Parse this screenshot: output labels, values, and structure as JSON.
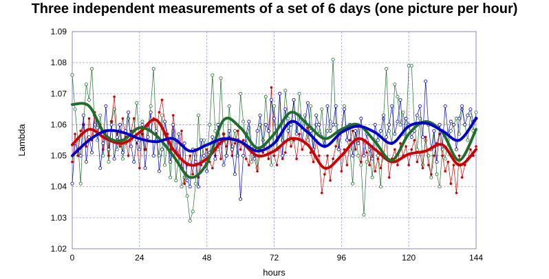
{
  "chart_data": {
    "type": "line",
    "title": "Three independent measurements of a set of 6 days (one picture per hour)",
    "xlabel": "hours",
    "ylabel": "Lambda",
    "xlim": [
      0,
      144
    ],
    "ylim": [
      1.02,
      1.09
    ],
    "x_ticks": [
      0,
      24,
      48,
      72,
      96,
      120,
      144
    ],
    "y_ticks": [
      "1.02",
      "1.03",
      "1.04",
      "1.05",
      "1.06",
      "1.07",
      "1.08",
      "1.09"
    ],
    "grid": true,
    "colors": {
      "red": "#cc0000",
      "green": "#1e6e2a",
      "blue": "#0000cc",
      "grid": "#9999dd"
    },
    "series": [
      {
        "id": "red",
        "raw": [
          1.048,
          1.057,
          1.05,
          1.058,
          1.06,
          1.053,
          1.062,
          1.055,
          1.064,
          1.057,
          1.06,
          1.052,
          1.058,
          1.05,
          1.061,
          1.069,
          1.057,
          1.053,
          1.062,
          1.056,
          1.05,
          1.058,
          1.062,
          1.054,
          1.046,
          1.057,
          1.052,
          1.06,
          1.058,
          1.062,
          1.057,
          1.064,
          1.068,
          1.061,
          1.057,
          1.052,
          1.063,
          1.055,
          1.05,
          1.058,
          1.041,
          1.047,
          1.05,
          1.044,
          1.052,
          1.043,
          1.047,
          1.05,
          1.052,
          1.048,
          1.046,
          1.05,
          1.055,
          1.049,
          1.057,
          1.053,
          1.056,
          1.05,
          1.054,
          1.058,
          1.052,
          1.055,
          1.049,
          1.047,
          1.054,
          1.049,
          1.045,
          1.052,
          1.051,
          1.054,
          1.049,
          1.072,
          1.05,
          1.047,
          1.053,
          1.049,
          1.051,
          1.058,
          1.053,
          1.055,
          1.049,
          1.057,
          1.052,
          1.054,
          1.059,
          1.051,
          1.048,
          1.055,
          1.05,
          1.038,
          1.044,
          1.05,
          1.042,
          1.049,
          1.053,
          1.058,
          1.045,
          1.052,
          1.047,
          1.055,
          1.058,
          1.052,
          1.06,
          1.048,
          1.055,
          1.051,
          1.047,
          1.053,
          1.045,
          1.049,
          1.046,
          1.05,
          1.056,
          1.043,
          1.049,
          1.052,
          1.047,
          1.054,
          1.05,
          1.053,
          1.047,
          1.052,
          1.055,
          1.048,
          1.051,
          1.046,
          1.056,
          1.047,
          1.044,
          1.05,
          1.054,
          1.057,
          1.05,
          1.045,
          1.048,
          1.041,
          1.047,
          1.038,
          1.05,
          1.043,
          1.047,
          1.049,
          1.052,
          1.05,
          1.053
        ],
        "smooth": [
          [
            0,
            1.0535
          ],
          [
            6,
            1.0585
          ],
          [
            12,
            1.0555
          ],
          [
            18,
            1.054
          ],
          [
            24,
            1.0575
          ],
          [
            30,
            1.0615
          ],
          [
            36,
            1.052
          ],
          [
            42,
            1.047
          ],
          [
            48,
            1.049
          ],
          [
            54,
            1.055
          ],
          [
            60,
            1.0545
          ],
          [
            66,
            1.05
          ],
          [
            72,
            1.0515
          ],
          [
            78,
            1.0555
          ],
          [
            84,
            1.0535
          ],
          [
            90,
            1.046
          ],
          [
            96,
            1.05
          ],
          [
            102,
            1.0555
          ],
          [
            108,
            1.052
          ],
          [
            114,
            1.048
          ],
          [
            120,
            1.0505
          ],
          [
            126,
            1.0515
          ],
          [
            132,
            1.0535
          ],
          [
            138,
            1.047
          ],
          [
            144,
            1.052
          ]
        ]
      },
      {
        "id": "green",
        "raw": [
          1.076,
          1.065,
          1.055,
          1.041,
          1.06,
          1.073,
          1.068,
          1.078,
          1.06,
          1.055,
          1.063,
          1.05,
          1.058,
          1.048,
          1.061,
          1.065,
          1.052,
          1.058,
          1.049,
          1.054,
          1.062,
          1.055,
          1.058,
          1.067,
          1.055,
          1.061,
          1.052,
          1.059,
          1.066,
          1.078,
          1.055,
          1.05,
          1.063,
          1.047,
          1.055,
          1.043,
          1.058,
          1.042,
          1.05,
          1.04,
          1.043,
          1.037,
          1.029,
          1.032,
          1.041,
          1.063,
          1.048,
          1.055,
          1.049,
          1.06,
          1.076,
          1.058,
          1.052,
          1.075,
          1.057,
          1.05,
          1.066,
          1.053,
          1.058,
          1.05,
          1.07,
          1.061,
          1.054,
          1.059,
          1.048,
          1.052,
          1.046,
          1.06,
          1.055,
          1.069,
          1.058,
          1.047,
          1.066,
          1.052,
          1.07,
          1.055,
          1.071,
          1.062,
          1.055,
          1.068,
          1.058,
          1.07,
          1.059,
          1.063,
          1.055,
          1.066,
          1.052,
          1.06,
          1.057,
          1.065,
          1.054,
          1.058,
          1.061,
          1.081,
          1.06,
          1.052,
          1.058,
          1.066,
          1.055,
          1.052,
          1.041,
          1.058,
          1.05,
          1.047,
          1.031,
          1.048,
          1.052,
          1.043,
          1.055,
          1.05,
          1.04,
          1.062,
          1.078,
          1.058,
          1.054,
          1.073,
          1.069,
          1.06,
          1.064,
          1.056,
          1.079,
          1.079,
          1.06,
          1.052,
          1.062,
          1.047,
          1.055,
          1.05,
          1.043,
          1.058,
          1.044,
          1.04,
          1.052,
          1.049,
          1.055,
          1.058,
          1.06,
          1.062,
          1.057,
          1.065,
          1.06,
          1.055,
          1.063,
          1.058,
          1.064
        ],
        "smooth": [
          [
            0,
            1.0665
          ],
          [
            6,
            1.066
          ],
          [
            12,
            1.0565
          ],
          [
            18,
            1.055
          ],
          [
            24,
            1.059
          ],
          [
            30,
            1.0565
          ],
          [
            36,
            1.05
          ],
          [
            42,
            1.043
          ],
          [
            48,
            1.0475
          ],
          [
            54,
            1.0615
          ],
          [
            60,
            1.059
          ],
          [
            66,
            1.0525
          ],
          [
            72,
            1.057
          ],
          [
            78,
            1.064
          ],
          [
            84,
            1.06
          ],
          [
            90,
            1.0555
          ],
          [
            96,
            1.0585
          ],
          [
            102,
            1.06
          ],
          [
            108,
            1.0545
          ],
          [
            114,
            1.0485
          ],
          [
            120,
            1.057
          ],
          [
            126,
            1.061
          ],
          [
            132,
            1.0575
          ],
          [
            138,
            1.0485
          ],
          [
            144,
            1.0585
          ]
        ]
      },
      {
        "id": "blue",
        "raw": [
          1.041,
          1.054,
          1.052,
          1.05,
          1.063,
          1.048,
          1.056,
          1.051,
          1.063,
          1.059,
          1.046,
          1.054,
          1.066,
          1.052,
          1.06,
          1.049,
          1.056,
          1.06,
          1.051,
          1.058,
          1.064,
          1.053,
          1.048,
          1.055,
          1.052,
          1.06,
          1.046,
          1.056,
          1.064,
          1.05,
          1.058,
          1.045,
          1.052,
          1.061,
          1.055,
          1.048,
          1.06,
          1.051,
          1.057,
          1.046,
          1.054,
          1.042,
          1.04,
          1.052,
          1.048,
          1.04,
          1.055,
          1.05,
          1.045,
          1.051,
          1.056,
          1.049,
          1.06,
          1.054,
          1.047,
          1.05,
          1.058,
          1.052,
          1.044,
          1.055,
          1.036,
          1.05,
          1.057,
          1.061,
          1.053,
          1.049,
          1.058,
          1.063,
          1.053,
          1.06,
          1.058,
          1.068,
          1.062,
          1.055,
          1.07,
          1.05,
          1.065,
          1.058,
          1.06,
          1.068,
          1.057,
          1.063,
          1.055,
          1.061,
          1.067,
          1.058,
          1.052,
          1.063,
          1.06,
          1.056,
          1.053,
          1.066,
          1.058,
          1.06,
          1.066,
          1.052,
          1.058,
          1.065,
          1.055,
          1.06,
          1.05,
          1.058,
          1.054,
          1.062,
          1.05,
          1.057,
          1.053,
          1.049,
          1.06,
          1.055,
          1.058,
          1.063,
          1.056,
          1.06,
          1.066,
          1.057,
          1.061,
          1.068,
          1.057,
          1.062,
          1.06,
          1.056,
          1.058,
          1.063,
          1.066,
          1.056,
          1.074,
          1.06,
          1.052,
          1.058,
          1.048,
          1.06,
          1.053,
          1.066,
          1.057,
          1.061,
          1.06,
          1.052,
          1.062,
          1.066,
          1.06,
          1.063,
          1.065,
          1.061,
          1.062
        ],
        "smooth": [
          [
            0,
            1.05
          ],
          [
            6,
            1.055
          ],
          [
            12,
            1.058
          ],
          [
            18,
            1.0575
          ],
          [
            24,
            1.0555
          ],
          [
            30,
            1.0545
          ],
          [
            36,
            1.0555
          ],
          [
            42,
            1.0515
          ],
          [
            48,
            1.0535
          ],
          [
            54,
            1.0555
          ],
          [
            60,
            1.0545
          ],
          [
            66,
            1.0515
          ],
          [
            72,
            1.054
          ],
          [
            78,
            1.061
          ],
          [
            84,
            1.0575
          ],
          [
            90,
            1.053
          ],
          [
            96,
            1.0575
          ],
          [
            102,
            1.0595
          ],
          [
            108,
            1.0575
          ],
          [
            114,
            1.054
          ],
          [
            120,
            1.0595
          ],
          [
            126,
            1.0605
          ],
          [
            132,
            1.058
          ],
          [
            138,
            1.055
          ],
          [
            144,
            1.062
          ]
        ]
      }
    ]
  }
}
